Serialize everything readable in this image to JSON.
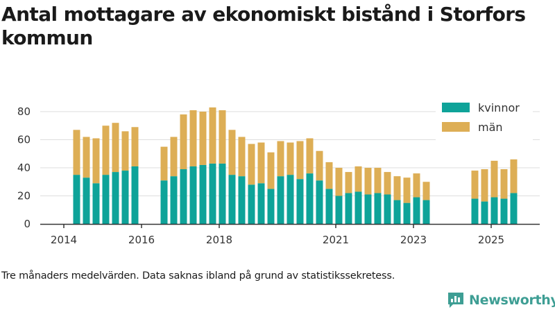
{
  "chart_data": {
    "type": "bar",
    "stacked": true,
    "title": "Antal mottagare av ekonomiskt bistånd i Storfors kommun",
    "footnote": "Tre månaders medelvärden. Data saknas ibland på grund av statistikssekretess.",
    "brand": "Newsworthy",
    "xlabel": "",
    "ylabel": "",
    "ylim": [
      0,
      85
    ],
    "y_ticks": [
      0,
      20,
      40,
      60,
      80
    ],
    "x_tick_labels": [
      {
        "label": "2014",
        "t": 2014.0
      },
      {
        "label": "2016",
        "t": 2016.0
      },
      {
        "label": "2018",
        "t": 2018.0
      },
      {
        "label": "2021",
        "t": 2021.0
      },
      {
        "label": "2023",
        "t": 2023.0
      },
      {
        "label": "2025",
        "t": 2025.0
      }
    ],
    "legend_position": "top-right",
    "colors": {
      "kvinnor": "#0ea399",
      "man": "#ddae55",
      "axis": "#333333",
      "grid": "#dddddd"
    },
    "series": [
      {
        "name": "kvinnor",
        "key": "kvinnor"
      },
      {
        "name": "män",
        "key": "man"
      }
    ],
    "bars": [
      {
        "t": 2014.33,
        "kvinnor": 35,
        "man": 32
      },
      {
        "t": 2014.58,
        "kvinnor": 33,
        "man": 29
      },
      {
        "t": 2014.83,
        "kvinnor": 29,
        "man": 32
      },
      {
        "t": 2015.08,
        "kvinnor": 35,
        "man": 35
      },
      {
        "t": 2015.33,
        "kvinnor": 37,
        "man": 35
      },
      {
        "t": 2015.58,
        "kvinnor": 38,
        "man": 28
      },
      {
        "t": 2015.83,
        "kvinnor": 41,
        "man": 28
      },
      {
        "t": 2016.58,
        "kvinnor": 31,
        "man": 24
      },
      {
        "t": 2016.83,
        "kvinnor": 34,
        "man": 28
      },
      {
        "t": 2017.08,
        "kvinnor": 39,
        "man": 39
      },
      {
        "t": 2017.33,
        "kvinnor": 41,
        "man": 40
      },
      {
        "t": 2017.58,
        "kvinnor": 42,
        "man": 38
      },
      {
        "t": 2017.83,
        "kvinnor": 43,
        "man": 40
      },
      {
        "t": 2018.08,
        "kvinnor": 43,
        "man": 38
      },
      {
        "t": 2018.33,
        "kvinnor": 35,
        "man": 32
      },
      {
        "t": 2018.58,
        "kvinnor": 34,
        "man": 28
      },
      {
        "t": 2018.83,
        "kvinnor": 28,
        "man": 29
      },
      {
        "t": 2019.08,
        "kvinnor": 29,
        "man": 29
      },
      {
        "t": 2019.33,
        "kvinnor": 25,
        "man": 26
      },
      {
        "t": 2019.58,
        "kvinnor": 34,
        "man": 25
      },
      {
        "t": 2019.83,
        "kvinnor": 35,
        "man": 23
      },
      {
        "t": 2020.08,
        "kvinnor": 32,
        "man": 27
      },
      {
        "t": 2020.33,
        "kvinnor": 36,
        "man": 25
      },
      {
        "t": 2020.58,
        "kvinnor": 31,
        "man": 21
      },
      {
        "t": 2020.83,
        "kvinnor": 25,
        "man": 19
      },
      {
        "t": 2021.08,
        "kvinnor": 20,
        "man": 20
      },
      {
        "t": 2021.33,
        "kvinnor": 22,
        "man": 15
      },
      {
        "t": 2021.58,
        "kvinnor": 23,
        "man": 18
      },
      {
        "t": 2021.83,
        "kvinnor": 21,
        "man": 19
      },
      {
        "t": 2022.08,
        "kvinnor": 22,
        "man": 18
      },
      {
        "t": 2022.33,
        "kvinnor": 21,
        "man": 16
      },
      {
        "t": 2022.58,
        "kvinnor": 17,
        "man": 17
      },
      {
        "t": 2022.83,
        "kvinnor": 15,
        "man": 18
      },
      {
        "t": 2023.08,
        "kvinnor": 19,
        "man": 17
      },
      {
        "t": 2023.33,
        "kvinnor": 17,
        "man": 13
      },
      {
        "t": 2024.58,
        "kvinnor": 18,
        "man": 20
      },
      {
        "t": 2024.83,
        "kvinnor": 16,
        "man": 23
      },
      {
        "t": 2025.08,
        "kvinnor": 19,
        "man": 26
      },
      {
        "t": 2025.33,
        "kvinnor": 18,
        "man": 21
      },
      {
        "t": 2025.58,
        "kvinnor": 22,
        "man": 24
      }
    ]
  }
}
